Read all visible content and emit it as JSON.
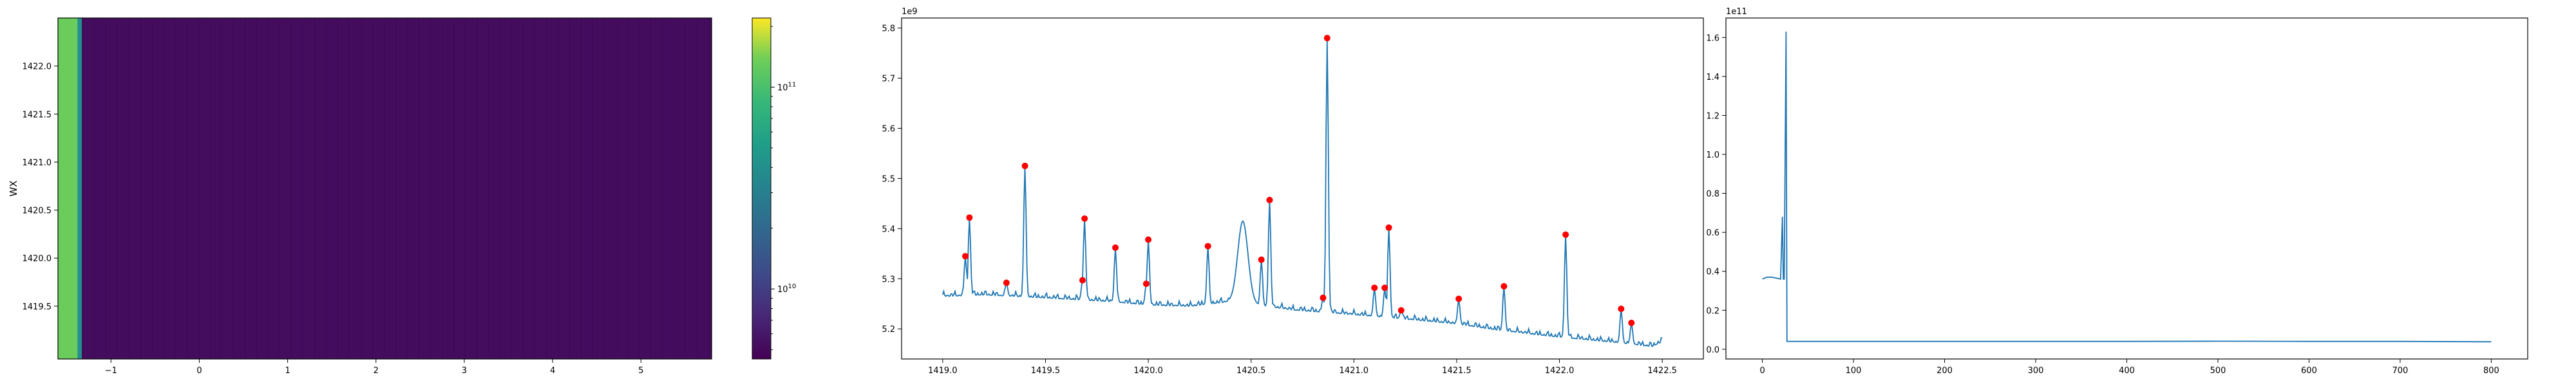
{
  "chart_data": [
    {
      "type": "heatmap",
      "ylabel": "WX",
      "xlim": [
        -1.6,
        5.8
      ],
      "ylim": [
        1418.95,
        1422.5
      ],
      "x_ticks": [
        "−1",
        "0",
        "1",
        "2",
        "3",
        "4",
        "5"
      ],
      "x_tick_values": [
        -1,
        0,
        1,
        2,
        3,
        4,
        5
      ],
      "y_ticks": [
        "1419.5",
        "1420.0",
        "1420.5",
        "1421.0",
        "1421.5",
        "1422.0"
      ],
      "y_tick_values": [
        1419.5,
        1420.0,
        1420.5,
        1421.0,
        1421.5,
        1422.0
      ],
      "columns": [
        {
          "x0": -1.6,
          "x1": -1.38,
          "value": 130000000000.0
        },
        {
          "x0": -1.38,
          "x1": -1.33,
          "value": 40000000000.0
        },
        {
          "x0": -1.33,
          "x1": 5.8,
          "value": 5200000000.0
        }
      ],
      "colormap": "viridis",
      "colorbar": {
        "scale": "log",
        "range": [
          4500000000.0,
          220000000000.0
        ],
        "ticks": [
          {
            "value": 10000000000.0,
            "base": "10",
            "exp": "10"
          },
          {
            "value": 100000000000.0,
            "base": "10",
            "exp": "11"
          }
        ]
      }
    },
    {
      "type": "line",
      "offset_label": "1e9",
      "xlim": [
        1418.8,
        1422.7
      ],
      "ylim": [
        5.14,
        5.82
      ],
      "x_ticks": [
        "1419.0",
        "1419.5",
        "1420.0",
        "1420.5",
        "1421.0",
        "1421.5",
        "1422.0",
        "1422.5"
      ],
      "x_tick_values": [
        1419.0,
        1419.5,
        1420.0,
        1420.5,
        1421.0,
        1421.5,
        1422.0,
        1422.5
      ],
      "y_ticks": [
        "5.2",
        "5.3",
        "5.4",
        "5.5",
        "5.6",
        "5.7",
        "5.8"
      ],
      "y_tick_values": [
        5.2,
        5.3,
        5.4,
        5.5,
        5.6,
        5.7,
        5.8
      ],
      "line_color": "#1f77b4",
      "marker_color": "#ff0000",
      "x_start": 1419.0,
      "x_end": 1422.5,
      "baseline": [
        [
          1419.0,
          5.265
        ],
        [
          1419.2,
          5.268
        ],
        [
          1419.5,
          5.262
        ],
        [
          1419.8,
          5.255
        ],
        [
          1420.0,
          5.248
        ],
        [
          1420.2,
          5.245
        ],
        [
          1420.4,
          5.255
        ],
        [
          1420.5,
          5.25
        ],
        [
          1420.7,
          5.238
        ],
        [
          1420.9,
          5.232
        ],
        [
          1421.1,
          5.225
        ],
        [
          1421.3,
          5.218
        ],
        [
          1421.5,
          5.21
        ],
        [
          1421.7,
          5.198
        ],
        [
          1421.9,
          5.188
        ],
        [
          1422.1,
          5.18
        ],
        [
          1422.3,
          5.172
        ],
        [
          1422.45,
          5.165
        ],
        [
          1422.5,
          5.175
        ]
      ],
      "bumps": [
        [
          1420.46,
          5.415,
          0.035
        ]
      ],
      "peaks": [
        {
          "x": 1419.11,
          "y": 5.345
        },
        {
          "x": 1419.13,
          "y": 5.422
        },
        {
          "x": 1419.31,
          "y": 5.292
        },
        {
          "x": 1419.4,
          "y": 5.525
        },
        {
          "x": 1419.68,
          "y": 5.297
        },
        {
          "x": 1419.69,
          "y": 5.42
        },
        {
          "x": 1419.84,
          "y": 5.362
        },
        {
          "x": 1419.99,
          "y": 5.29
        },
        {
          "x": 1420.0,
          "y": 5.378
        },
        {
          "x": 1420.29,
          "y": 5.365
        },
        {
          "x": 1420.55,
          "y": 5.338
        },
        {
          "x": 1420.59,
          "y": 5.457
        },
        {
          "x": 1420.85,
          "y": 5.262
        },
        {
          "x": 1420.87,
          "y": 5.78
        },
        {
          "x": 1421.1,
          "y": 5.282
        },
        {
          "x": 1421.15,
          "y": 5.282
        },
        {
          "x": 1421.17,
          "y": 5.402
        },
        {
          "x": 1421.23,
          "y": 5.237
        },
        {
          "x": 1421.51,
          "y": 5.26
        },
        {
          "x": 1421.73,
          "y": 5.285
        },
        {
          "x": 1422.03,
          "y": 5.388
        },
        {
          "x": 1422.3,
          "y": 5.24
        },
        {
          "x": 1422.35,
          "y": 5.212
        }
      ]
    },
    {
      "type": "line",
      "offset_label": "1e11",
      "xlim": [
        -40,
        840
      ],
      "ylim": [
        -0.05,
        1.7
      ],
      "x_ticks": [
        "0",
        "100",
        "200",
        "300",
        "400",
        "500",
        "600",
        "700",
        "800"
      ],
      "x_tick_values": [
        0,
        100,
        200,
        300,
        400,
        500,
        600,
        700,
        800
      ],
      "y_ticks": [
        "0.0",
        "0.2",
        "0.4",
        "0.6",
        "0.8",
        "1.0",
        "1.2",
        "1.4",
        "1.6"
      ],
      "y_tick_values": [
        0.0,
        0.2,
        0.4,
        0.6,
        0.8,
        1.0,
        1.2,
        1.4,
        1.6
      ],
      "line_color": "#1f77b4",
      "points": [
        [
          0,
          0.36
        ],
        [
          5,
          0.37
        ],
        [
          10,
          0.37
        ],
        [
          15,
          0.365
        ],
        [
          20,
          0.36
        ],
        [
          22,
          0.68
        ],
        [
          23,
          0.36
        ],
        [
          24,
          0.36
        ],
        [
          26,
          1.63
        ],
        [
          27,
          0.04
        ],
        [
          100,
          0.04
        ],
        [
          200,
          0.04
        ],
        [
          300,
          0.04
        ],
        [
          400,
          0.04
        ],
        [
          500,
          0.041
        ],
        [
          600,
          0.04
        ],
        [
          700,
          0.04
        ],
        [
          800,
          0.038
        ]
      ]
    }
  ]
}
